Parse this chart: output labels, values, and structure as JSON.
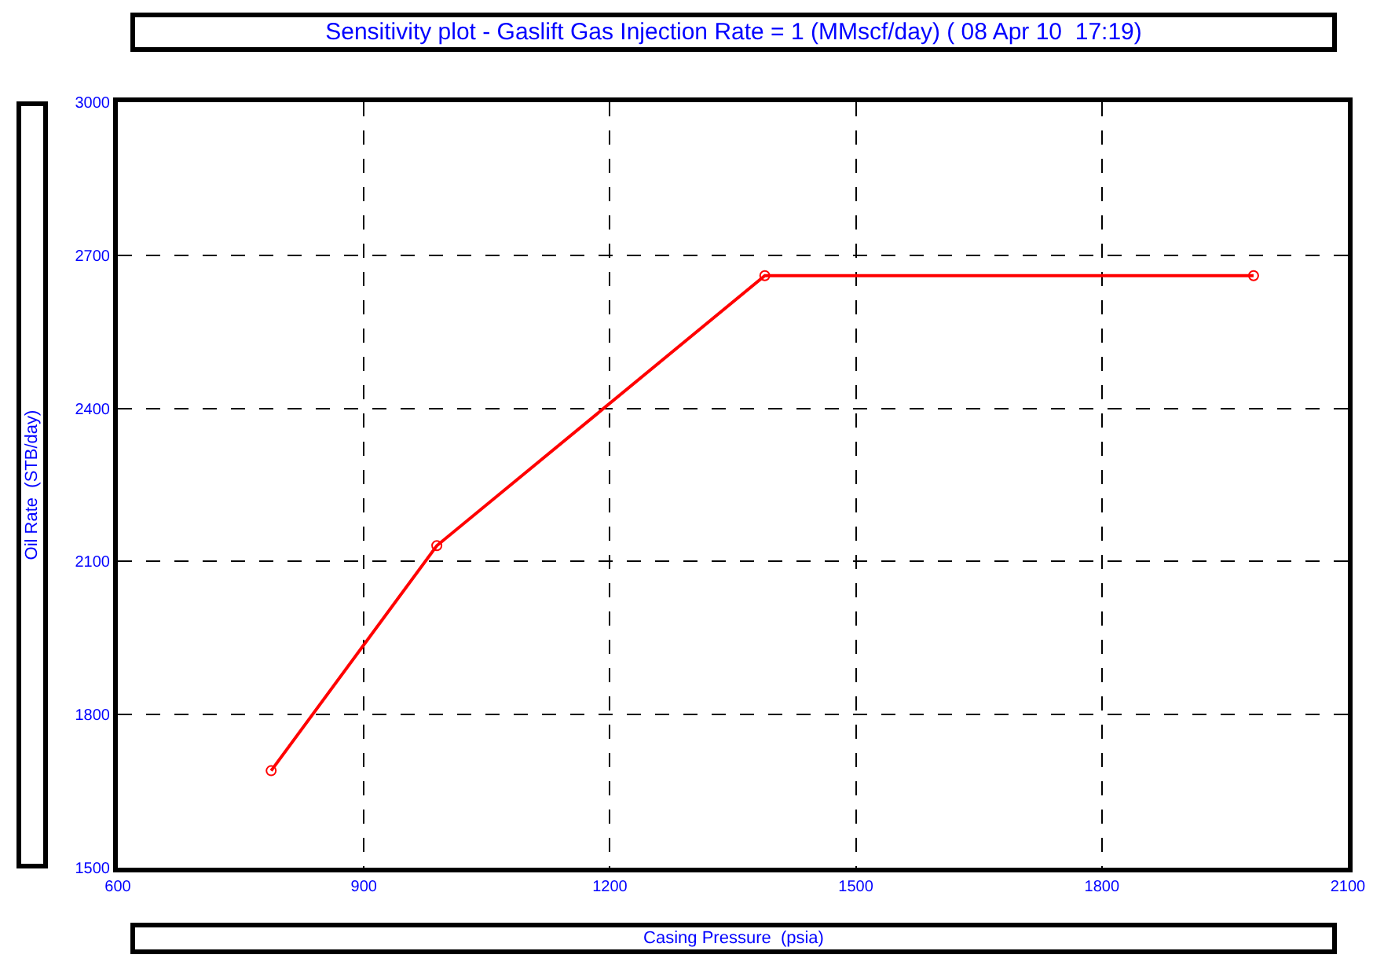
{
  "chart_data": {
    "type": "line",
    "title": "Sensitivity plot - Gaslift Gas Injection Rate = 1 (MMscf/day) ( 08 Apr 10  17:19)",
    "xlabel": "Casing Pressure  (psia)",
    "ylabel": "Oil Rate  (STB/day)",
    "x": [
      787,
      989,
      1389,
      1985
    ],
    "series": [
      {
        "color": "#ff0000",
        "values": [
          1690,
          2131,
          2660,
          2660
        ]
      }
    ],
    "xlim": [
      600,
      2100
    ],
    "xticks": [
      600,
      900,
      1200,
      1500,
      1800,
      2100
    ],
    "ylim": [
      1500,
      3000
    ],
    "yticks": [
      1500,
      1800,
      2100,
      2400,
      2700,
      3000
    ],
    "grid": true,
    "marker": "circle",
    "line_style": "solid"
  }
}
